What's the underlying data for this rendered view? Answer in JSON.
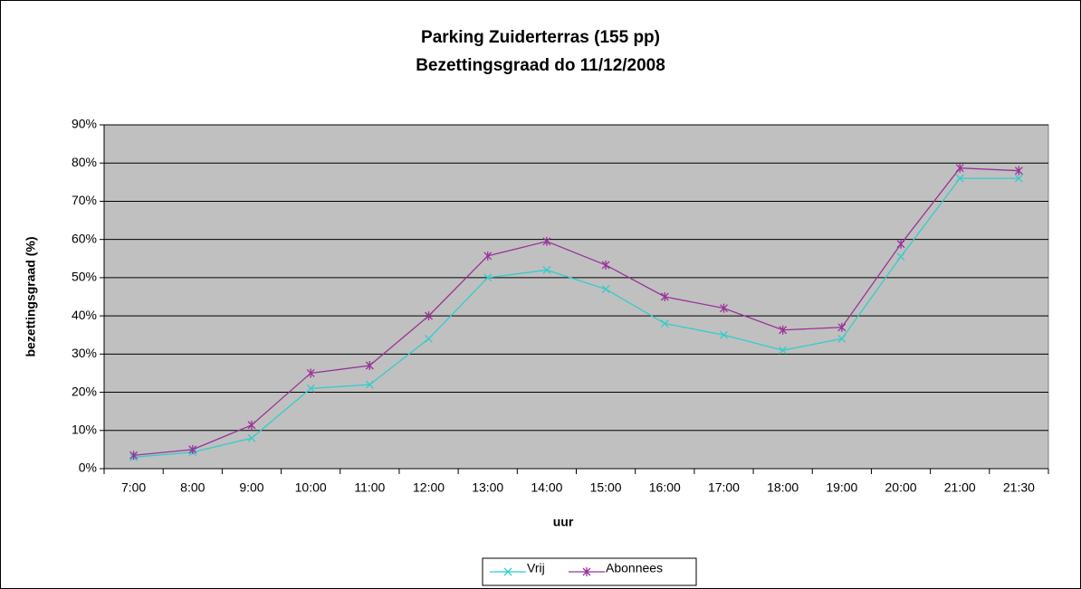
{
  "chart_data": {
    "type": "line",
    "title": "Parking Zuiderterras (155 pp)",
    "subtitle": "Bezettingsgraad do 11/12/2008",
    "x_label": "uur",
    "y_label": "bezettingsgraad (%)",
    "categories": [
      "7:00",
      "8:00",
      "9:00",
      "10:00",
      "11:00",
      "12:00",
      "13:00",
      "14:00",
      "15:00",
      "16:00",
      "17:00",
      "18:00",
      "19:00",
      "20:00",
      "21:00",
      "21:30"
    ],
    "series": [
      {
        "name": "Vrij",
        "color": "#33cccc",
        "marker": "x",
        "values": [
          3,
          4.3,
          8,
          21,
          22,
          34,
          50,
          52,
          47,
          38,
          35,
          31,
          34,
          55.5,
          76,
          76
        ]
      },
      {
        "name": "Abonnees",
        "color": "#993399",
        "marker": "star",
        "values": [
          3.5,
          5,
          11.4,
          25,
          27,
          40,
          55.7,
          59.5,
          53.3,
          45,
          42,
          36.3,
          37,
          58.8,
          78.7,
          78
        ]
      }
    ],
    "ylim": [
      0,
      90
    ],
    "yticks": [
      {
        "value": 0,
        "label": "0%"
      },
      {
        "value": 10,
        "label": "10%"
      },
      {
        "value": 20,
        "label": "20%"
      },
      {
        "value": 30,
        "label": "30%"
      },
      {
        "value": 40,
        "label": "40%"
      },
      {
        "value": 50,
        "label": "50%"
      },
      {
        "value": 60,
        "label": "60%"
      },
      {
        "value": 70,
        "label": "70%"
      },
      {
        "value": 80,
        "label": "80%"
      },
      {
        "value": 90,
        "label": "90%"
      }
    ],
    "grid": true,
    "plot_background": "#c0c0c0",
    "legend": "bottom"
  }
}
